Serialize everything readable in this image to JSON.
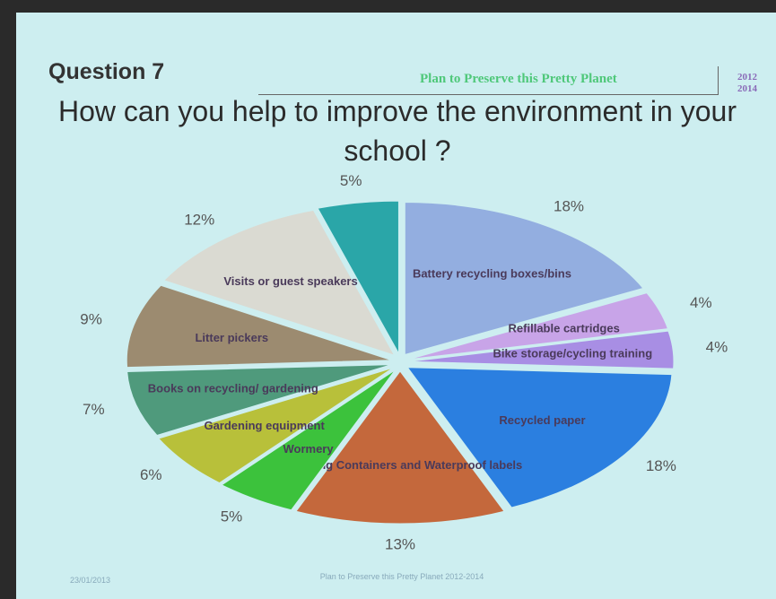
{
  "header": {
    "question": "Question 7",
    "project": "Plan to Preserve this Pretty Planet",
    "years": [
      "2012",
      "2014"
    ]
  },
  "footer": {
    "date": "23/01/2013",
    "project": "Plan to Preserve this Pretty Planet 2012-2014"
  },
  "chart_data": {
    "type": "pie",
    "title": "How can you help to improve the environment in your school ?",
    "categories": [
      "Battery recycling boxes/bins",
      "Refillable cartridges",
      "Bike storage/cycling training",
      "Recycled paper",
      "Recycling Containers and Waterproof labels",
      "Wormery",
      "Gardening equipment",
      "Books on recycling/ gardening",
      "Litter pickers",
      "Visits or guest speakers",
      null
    ],
    "values": [
      18,
      4,
      4,
      18,
      13,
      5,
      6,
      7,
      9,
      12,
      5
    ],
    "value_labels": [
      "18%",
      "4%",
      "4%",
      "18%",
      "13%",
      "5%",
      "6%",
      "7%",
      "9%",
      "12%",
      "5%"
    ],
    "colors": [
      "#93aee0",
      "#c8a4e8",
      "#a88ee4",
      "#2b7fe0",
      "#c4683c",
      "#3cc23c",
      "#b8c03a",
      "#4f9a7c",
      "#9c8b70",
      "#dadad2",
      "#2aa6a8"
    ]
  }
}
